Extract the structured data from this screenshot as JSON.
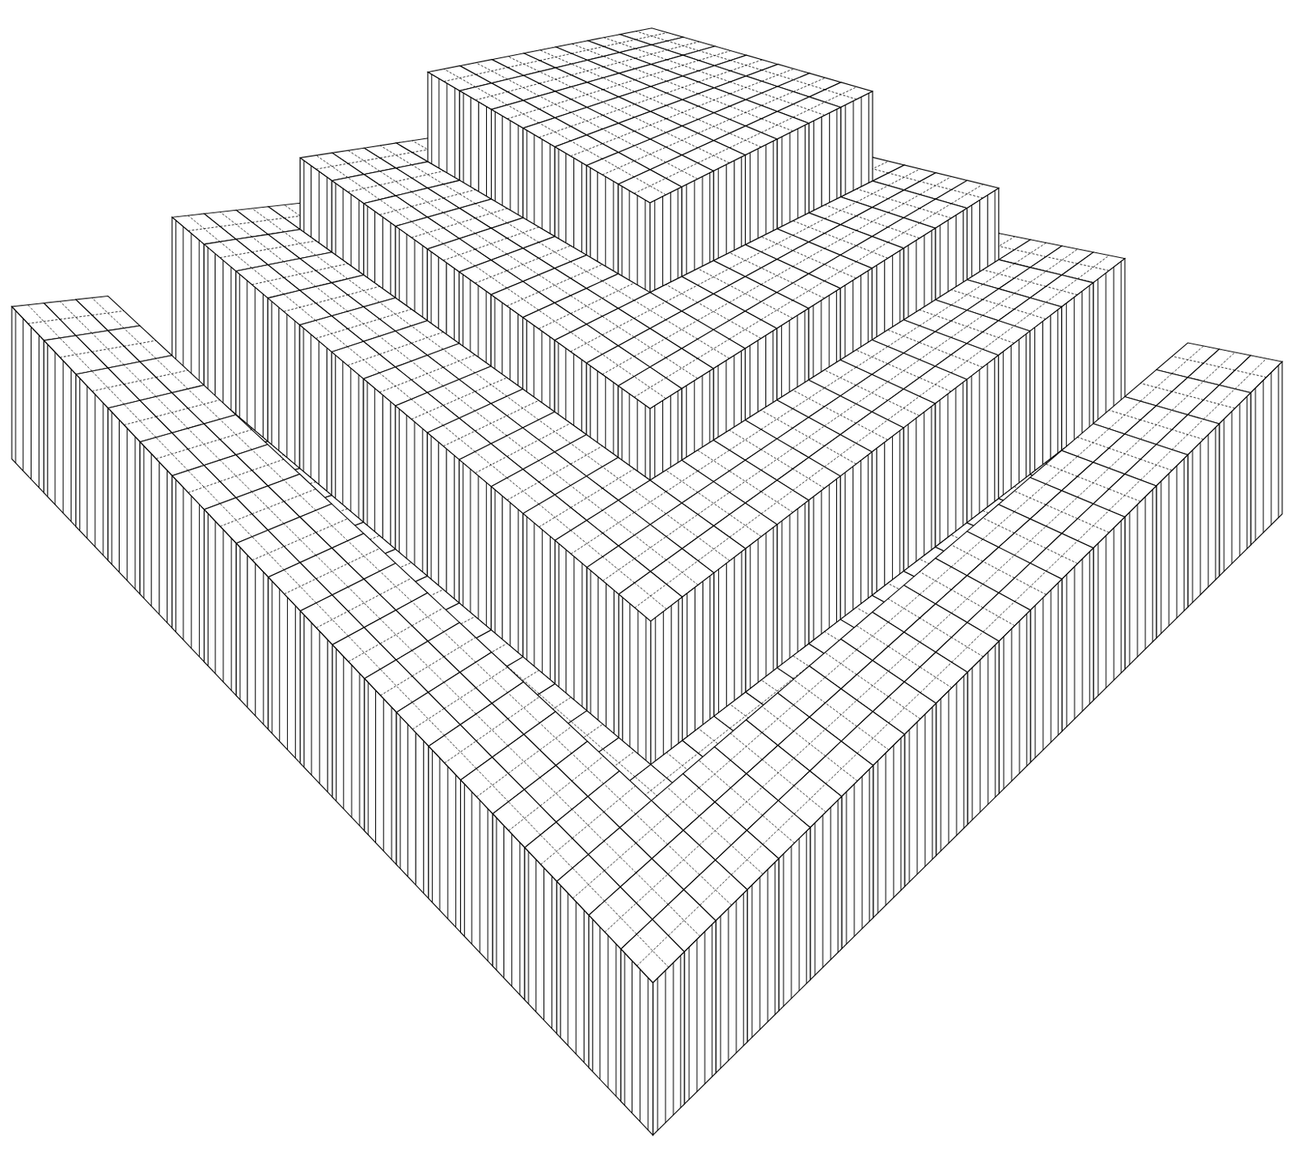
{
  "chart_data": {
    "type": "surface",
    "zlim": [
      -85,
      130
    ],
    "z": [
      [
        0,
        0,
        0,
        0,
        0,
        0,
        0,
        0,
        0,
        0,
        0,
        0,
        0,
        0,
        0,
        0,
        0,
        0,
        0,
        0
      ],
      [
        0,
        0,
        0,
        0,
        0,
        0,
        0,
        0,
        0,
        0,
        0,
        0,
        0,
        0,
        0,
        0,
        0,
        0,
        0,
        0
      ],
      [
        0,
        0,
        0,
        0,
        0,
        0,
        0,
        0,
        0,
        0,
        0,
        0,
        0,
        0,
        0,
        0,
        0,
        0,
        0,
        0
      ],
      [
        0,
        0,
        0,
        -40,
        -40,
        -40,
        -40,
        -40,
        -40,
        -40,
        -40,
        -40,
        -40,
        -40,
        -40,
        -40,
        -40,
        -40,
        -40,
        -40
      ],
      [
        0,
        0,
        0,
        -40,
        -40,
        -40,
        -40,
        -40,
        -40,
        -40,
        -40,
        -40,
        -40,
        -40,
        -40,
        -40,
        -40,
        -40,
        -40,
        -40
      ],
      [
        0,
        0,
        0,
        -40,
        -40,
        40,
        40,
        40,
        40,
        40,
        40,
        40,
        40,
        40,
        40,
        40,
        40,
        40,
        40,
        40
      ],
      [
        0,
        0,
        0,
        -40,
        -40,
        40,
        40,
        40,
        40,
        40,
        40,
        40,
        40,
        40,
        40,
        40,
        40,
        40,
        40,
        40
      ],
      [
        0,
        0,
        0,
        -40,
        -40,
        40,
        40,
        40,
        40,
        40,
        40,
        40,
        40,
        40,
        40,
        40,
        40,
        40,
        40,
        40
      ],
      [
        0,
        0,
        0,
        -40,
        -40,
        40,
        40,
        40,
        80,
        80,
        80,
        80,
        80,
        80,
        80,
        80,
        80,
        80,
        80,
        40
      ],
      [
        0,
        0,
        0,
        -40,
        -40,
        40,
        40,
        40,
        80,
        80,
        80,
        80,
        80,
        80,
        80,
        80,
        80,
        80,
        80,
        40
      ],
      [
        0,
        0,
        0,
        -40,
        -40,
        40,
        40,
        40,
        80,
        80,
        80,
        80,
        80,
        80,
        80,
        80,
        80,
        80,
        80,
        40
      ],
      [
        0,
        0,
        0,
        -40,
        -40,
        40,
        40,
        40,
        80,
        80,
        80,
        130,
        130,
        130,
        130,
        130,
        130,
        130,
        80,
        40
      ],
      [
        0,
        0,
        0,
        -40,
        -40,
        40,
        40,
        40,
        80,
        80,
        80,
        130,
        130,
        130,
        130,
        130,
        130,
        130,
        80,
        40
      ],
      [
        0,
        0,
        0,
        -40,
        -40,
        40,
        40,
        40,
        80,
        80,
        80,
        130,
        130,
        130,
        130,
        130,
        130,
        130,
        80,
        40
      ],
      [
        0,
        0,
        0,
        -40,
        -40,
        40,
        40,
        40,
        80,
        80,
        80,
        130,
        130,
        130,
        130,
        130,
        130,
        130,
        80,
        40
      ],
      [
        0,
        0,
        0,
        -40,
        -40,
        40,
        40,
        40,
        80,
        80,
        80,
        130,
        130,
        130,
        130,
        130,
        130,
        130,
        80,
        40
      ],
      [
        0,
        0,
        0,
        -40,
        -40,
        40,
        40,
        40,
        80,
        80,
        80,
        130,
        130,
        130,
        130,
        130,
        130,
        130,
        80,
        40
      ],
      [
        0,
        0,
        0,
        -40,
        -40,
        40,
        40,
        40,
        80,
        80,
        80,
        130,
        130,
        130,
        130,
        130,
        130,
        130,
        80,
        40
      ],
      [
        0,
        0,
        0,
        -40,
        -40,
        40,
        40,
        40,
        80,
        80,
        80,
        80,
        80,
        80,
        80,
        80,
        80,
        80,
        80,
        40
      ],
      [
        0,
        0,
        0,
        -40,
        -40,
        40,
        40,
        40,
        40,
        40,
        40,
        40,
        40,
        40,
        40,
        40,
        40,
        40,
        40,
        40
      ]
    ]
  }
}
